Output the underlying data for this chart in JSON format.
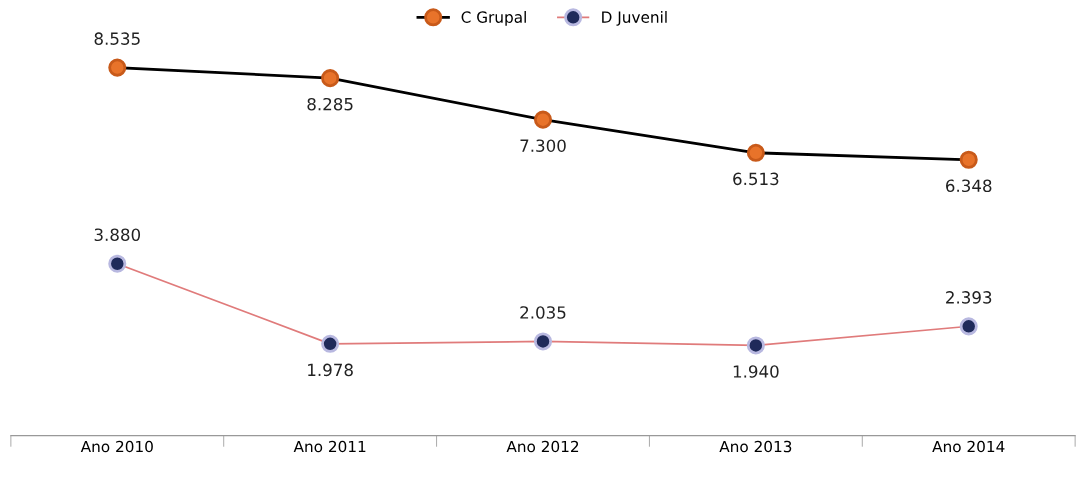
{
  "chart_data": {
    "type": "line",
    "categories": [
      "Ano 2010",
      "Ano 2011",
      "Ano 2012",
      "Ano 2013",
      "Ano 2014"
    ],
    "series": [
      {
        "name": "C Grupal",
        "color": "#000000",
        "values": [
          8535,
          8285,
          7300,
          6513,
          6348
        ],
        "value_labels": [
          "8.535",
          "8.285",
          "7.300",
          "6.513",
          "6.348"
        ]
      },
      {
        "name": "D Juvenil",
        "color": "#e07b7b",
        "values": [
          3880,
          1978,
          2035,
          1940,
          2393
        ],
        "value_labels": [
          "3.880",
          "1.978",
          "2.035",
          "1.940",
          "2.393"
        ]
      }
    ],
    "legend": "top",
    "marker": "circle",
    "line_style": "solid",
    "grid": false
  }
}
